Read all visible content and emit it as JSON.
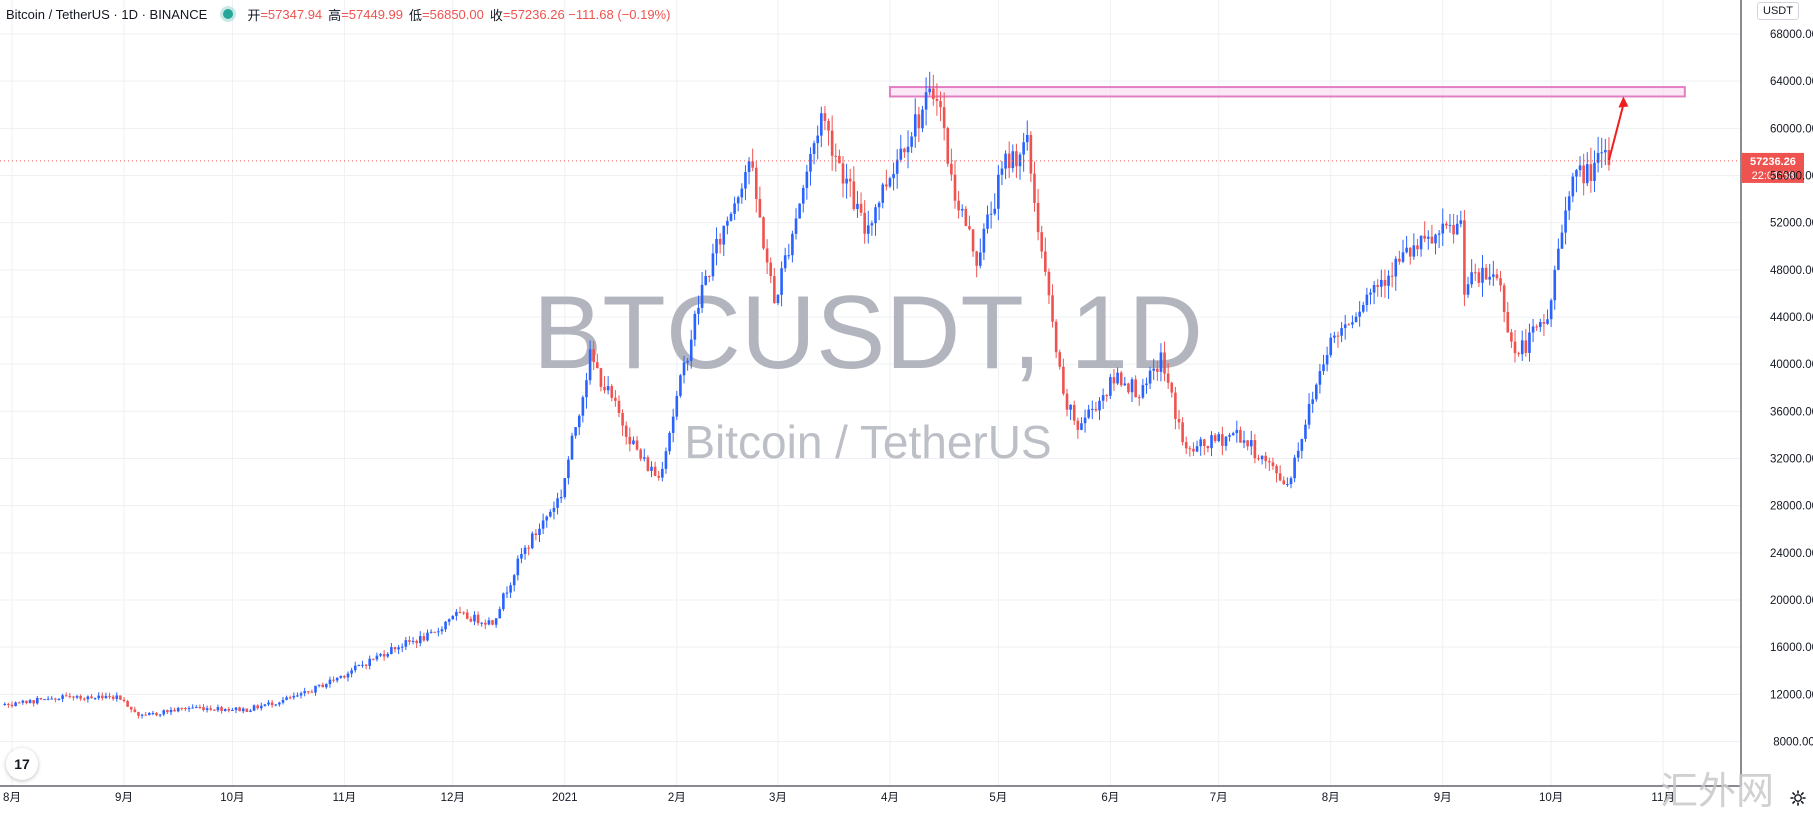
{
  "header": {
    "symbol_line": "Bitcoin / TetherUS · 1D · BINANCE",
    "open_label": "开",
    "open_value": "=57347.94",
    "high_label": "高",
    "high_value": "=57449.99",
    "low_label": "低",
    "low_value": "=56850.00",
    "close_label": "收",
    "close_value": "=57236.26 −111.68 (−0.19%)",
    "quote_currency": "USDT"
  },
  "colors": {
    "up": "#2962ff",
    "down": "#ef5350",
    "grid": "#eef0f3",
    "resistance_fill": "#f7d6ee",
    "resistance_stroke": "#e27fc4",
    "price_tag": "#ef5350",
    "arrow": "#f01f1f",
    "watermark": "#b2b5be"
  },
  "watermark_main": "BTCUSDT, 1D",
  "watermark_sub": "Bitcoin / TetherUS",
  "corner_watermark": "汇外网",
  "tv_logo": "17",
  "last_price_tag": "57236.26",
  "countdown": "22:01:58",
  "chart_data": {
    "type": "candlestick",
    "title": "BTCUSDT, 1D",
    "interval": "1D",
    "exchange": "BINANCE",
    "ylim": [
      6000,
      70000
    ],
    "y_ticks": [
      "68000.00",
      "64000.00",
      "60000.00",
      "56000.00",
      "52000.00",
      "48000.00",
      "44000.00",
      "40000.00",
      "36000.00",
      "32000.00",
      "28000.00",
      "24000.00",
      "20000.00",
      "16000.00",
      "12000.00",
      "8000.00"
    ],
    "y_tick_values": [
      68000,
      64000,
      60000,
      56000,
      52000,
      48000,
      44000,
      40000,
      36000,
      32000,
      28000,
      24000,
      20000,
      16000,
      12000,
      8000
    ],
    "x_tick_labels": [
      "8月",
      "9月",
      "10月",
      "11月",
      "12月",
      "2021",
      "2月",
      "3月",
      "4月",
      "5月",
      "6月",
      "7月",
      "8月",
      "9月",
      "10月",
      "11月"
    ],
    "x_tick_dates": [
      "2020-08-01",
      "2020-09-01",
      "2020-10-01",
      "2020-11-01",
      "2020-12-01",
      "2021-01-01",
      "2021-02-01",
      "2021-03-01",
      "2021-04-01",
      "2021-05-01",
      "2021-06-01",
      "2021-07-01",
      "2021-08-01",
      "2021-09-01",
      "2021-10-01",
      "2021-11-01"
    ],
    "last_price": 57236.26,
    "resistance_zone": {
      "from_date": "2021-04-01",
      "to_date": "2021-11-07",
      "low": 62700,
      "high": 63500
    },
    "arrow": {
      "from_date": "2021-10-17",
      "from_price": 57300,
      "to_date": "2021-10-21",
      "to_price": 62700
    },
    "key_points": [
      {
        "date": "2020-07-30",
        "close": 11100
      },
      {
        "date": "2020-08-15",
        "close": 11800
      },
      {
        "date": "2020-08-31",
        "close": 11700
      },
      {
        "date": "2020-09-05",
        "close": 10200
      },
      {
        "date": "2020-09-20",
        "close": 10900
      },
      {
        "date": "2020-10-05",
        "close": 10700
      },
      {
        "date": "2020-10-20",
        "close": 11900
      },
      {
        "date": "2020-11-01",
        "close": 13700
      },
      {
        "date": "2020-11-15",
        "close": 16000
      },
      {
        "date": "2020-11-26",
        "close": 17100
      },
      {
        "date": "2020-12-01",
        "close": 18800
      },
      {
        "date": "2020-12-12",
        "close": 18100
      },
      {
        "date": "2020-12-20",
        "close": 23800
      },
      {
        "date": "2020-12-31",
        "close": 29000
      },
      {
        "date": "2021-01-08",
        "close": 40600
      },
      {
        "date": "2021-01-22",
        "close": 32000
      },
      {
        "date": "2021-01-27",
        "close": 30400
      },
      {
        "date": "2021-02-08",
        "close": 46400
      },
      {
        "date": "2021-02-21",
        "close": 57400
      },
      {
        "date": "2021-02-28",
        "close": 45200
      },
      {
        "date": "2021-03-13",
        "close": 61200
      },
      {
        "date": "2021-03-25",
        "close": 51300
      },
      {
        "date": "2021-04-05",
        "close": 59000
      },
      {
        "date": "2021-04-14",
        "close": 63500
      },
      {
        "date": "2021-04-18",
        "close": 55600
      },
      {
        "date": "2021-04-25",
        "close": 49000
      },
      {
        "date": "2021-05-03",
        "close": 57100
      },
      {
        "date": "2021-05-09",
        "close": 58500
      },
      {
        "date": "2021-05-13",
        "close": 49500
      },
      {
        "date": "2021-05-19",
        "close": 37000
      },
      {
        "date": "2021-05-23",
        "close": 34700
      },
      {
        "date": "2021-06-03",
        "close": 39000
      },
      {
        "date": "2021-06-10",
        "close": 37500
      },
      {
        "date": "2021-06-15",
        "close": 40500
      },
      {
        "date": "2021-06-22",
        "close": 32500
      },
      {
        "date": "2021-07-06",
        "close": 34200
      },
      {
        "date": "2021-07-20",
        "close": 29800
      },
      {
        "date": "2021-07-31",
        "close": 41500
      },
      {
        "date": "2021-08-14",
        "close": 47000
      },
      {
        "date": "2021-08-22",
        "close": 49300
      },
      {
        "date": "2021-09-06",
        "close": 51800
      },
      {
        "date": "2021-09-07",
        "close": 46800
      },
      {
        "date": "2021-09-16",
        "close": 47700
      },
      {
        "date": "2021-09-21",
        "close": 40700
      },
      {
        "date": "2021-09-30",
        "close": 43800
      },
      {
        "date": "2021-10-06",
        "close": 55300
      },
      {
        "date": "2021-10-15",
        "close": 57200
      },
      {
        "date": "2021-10-17",
        "close": 57236.26
      }
    ]
  }
}
